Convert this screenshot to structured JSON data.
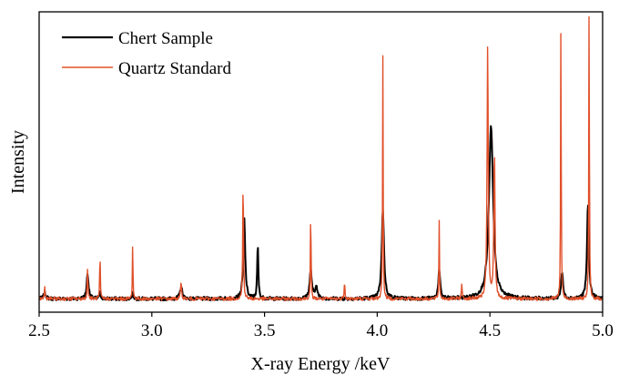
{
  "chart_data": {
    "type": "line",
    "title": "",
    "xlabel": "X-ray Energy /keV",
    "ylabel": "Intensity",
    "xlim": [
      2.5,
      5.0
    ],
    "ylim": [
      0,
      1.0
    ],
    "x_ticks": [
      "2.5",
      "3.0",
      "3.5",
      "4.0",
      "4.5",
      "5.0"
    ],
    "y_ticks_shown": false,
    "grid": false,
    "legend_position": "top-left",
    "baseline": 0.045,
    "series": [
      {
        "name": "Chert Sample",
        "color": "#000000",
        "peaks": [
          {
            "x": 2.525,
            "h": 0.02,
            "w": 0.006
          },
          {
            "x": 2.715,
            "h": 0.085,
            "w": 0.005
          },
          {
            "x": 2.77,
            "h": 0.02,
            "w": 0.004
          },
          {
            "x": 2.915,
            "h": 0.02,
            "w": 0.004
          },
          {
            "x": 3.13,
            "h": 0.04,
            "w": 0.006
          },
          {
            "x": 3.41,
            "h": 0.27,
            "w": 0.005
          },
          {
            "x": 3.47,
            "h": 0.18,
            "w": 0.003
          },
          {
            "x": 3.705,
            "h": 0.095,
            "w": 0.006
          },
          {
            "x": 3.73,
            "h": 0.045,
            "w": 0.005
          },
          {
            "x": 4.025,
            "h": 0.3,
            "w": 0.006
          },
          {
            "x": 4.275,
            "h": 0.095,
            "w": 0.005
          },
          {
            "x": 4.505,
            "h": 0.58,
            "w": 0.011
          },
          {
            "x": 4.82,
            "h": 0.09,
            "w": 0.005
          },
          {
            "x": 4.935,
            "h": 0.32,
            "w": 0.005
          }
        ]
      },
      {
        "name": "Quartz Standard",
        "color": "#e0502a",
        "peaks": [
          {
            "x": 2.525,
            "h": 0.04,
            "w": 0.002
          },
          {
            "x": 2.715,
            "h": 0.1,
            "w": 0.002
          },
          {
            "x": 2.77,
            "h": 0.16,
            "w": 0.0015
          },
          {
            "x": 2.915,
            "h": 0.19,
            "w": 0.0015
          },
          {
            "x": 3.13,
            "h": 0.05,
            "w": 0.003
          },
          {
            "x": 3.405,
            "h": 0.41,
            "w": 0.002
          },
          {
            "x": 3.705,
            "h": 0.32,
            "w": 0.0015
          },
          {
            "x": 3.855,
            "h": 0.06,
            "w": 0.002
          },
          {
            "x": 4.025,
            "h": 0.82,
            "w": 0.0015
          },
          {
            "x": 4.275,
            "h": 0.26,
            "w": 0.0015
          },
          {
            "x": 4.375,
            "h": 0.05,
            "w": 0.002
          },
          {
            "x": 4.49,
            "h": 0.86,
            "w": 0.003
          },
          {
            "x": 4.52,
            "h": 0.5,
            "w": 0.003
          },
          {
            "x": 4.815,
            "h": 0.96,
            "w": 0.0015
          },
          {
            "x": 4.94,
            "h": 1.02,
            "w": 0.0015
          }
        ]
      }
    ]
  }
}
